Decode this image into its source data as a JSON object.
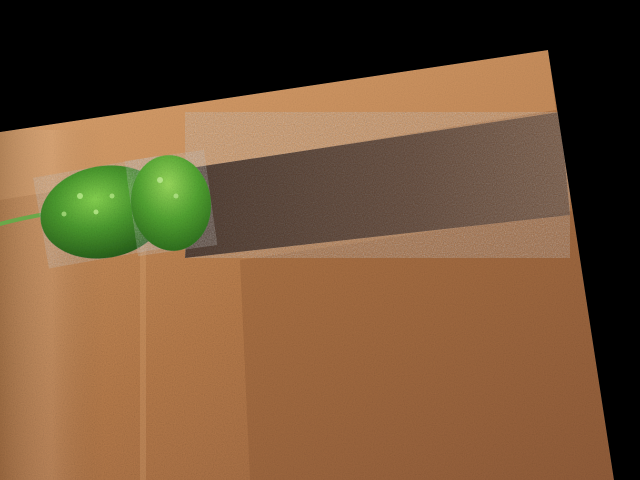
{
  "scene": {
    "background_color": "#000000",
    "surface": {
      "name": "cork-board",
      "light_color": "#d9a06a",
      "mid_color": "#b97d4c",
      "dark_color": "#8e5a36",
      "shadow_color": "#4a3226"
    },
    "object": {
      "name": "pickle",
      "body_color": "#3f8f2a",
      "highlight_color": "#7fcf4c",
      "shadow_color": "#245a18",
      "stem_color": "#6aa84a"
    }
  }
}
